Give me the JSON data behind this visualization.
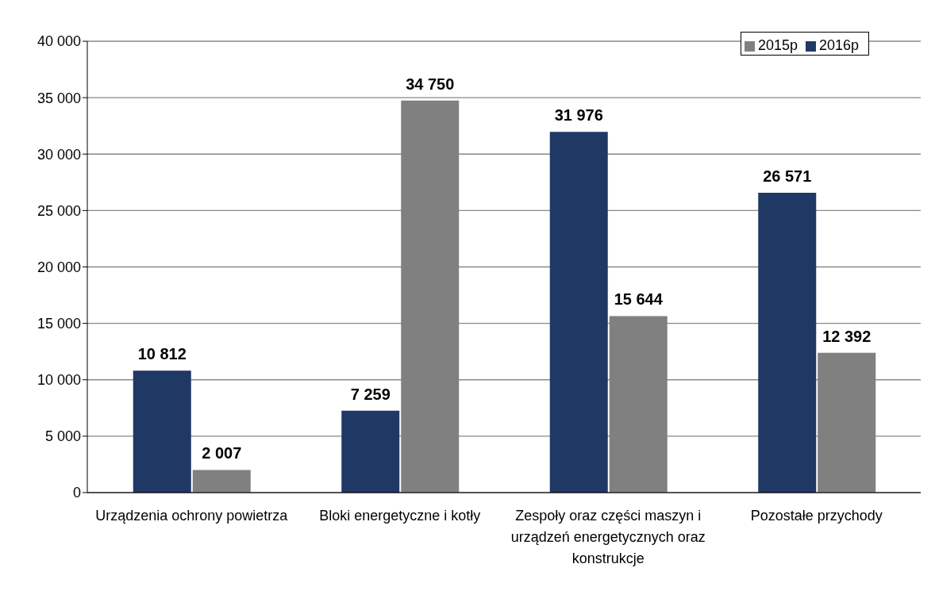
{
  "chart_data": {
    "type": "bar",
    "categories": [
      "Urządzenia ochrony powietrza",
      "Bloki energetyczne i kotły",
      "Zespoły oraz części maszyn i urządzeń energetycznych oraz konstrukcje",
      "Pozostałe przychody"
    ],
    "series": [
      {
        "name": "2016p",
        "color": "#203864",
        "values": [
          10812,
          7259,
          31976,
          26571
        ],
        "value_labels": [
          "10 812",
          "7 259",
          "31 976",
          "26 571"
        ]
      },
      {
        "name": "2015p",
        "color": "#808080",
        "values": [
          2007,
          34750,
          15644,
          12392
        ],
        "value_labels": [
          "2 007",
          "34 750",
          "15 644",
          "12 392"
        ]
      }
    ],
    "ylim": [
      0,
      40000
    ],
    "yticks": [
      {
        "value": 0,
        "label": "0"
      },
      {
        "value": 5000,
        "label": "5 000"
      },
      {
        "value": 10000,
        "label": "10 000"
      },
      {
        "value": 15000,
        "label": "15 000"
      },
      {
        "value": 20000,
        "label": "20 000"
      },
      {
        "value": 25000,
        "label": "25 000"
      },
      {
        "value": 30000,
        "label": "30 000"
      },
      {
        "value": 35000,
        "label": "35 000"
      },
      {
        "value": 40000,
        "label": "40 000"
      }
    ],
    "grid": "y",
    "legend": "top right"
  }
}
